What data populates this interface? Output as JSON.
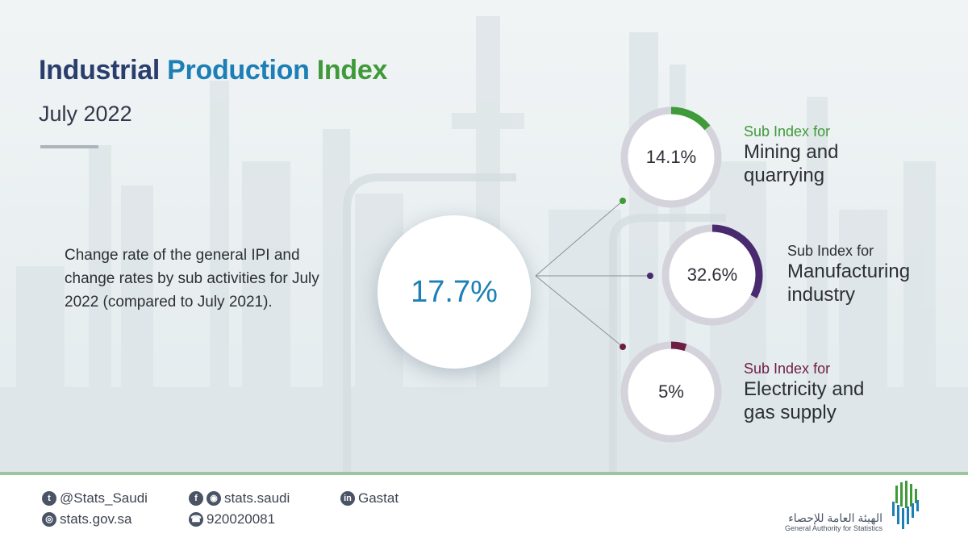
{
  "title": {
    "part1": "Industrial ",
    "part2": "Production ",
    "part3": "Index"
  },
  "date": "July 2022",
  "description": "Change rate of the general IPI and change rates by sub activities for July 2022 (compared to July 2021).",
  "general": {
    "value": "17.7%",
    "color": "#1c7fb5"
  },
  "sub_indices": [
    {
      "label": "Sub Index for",
      "name_line1": "Mining and",
      "name_line2": "quarrying",
      "value": "14.1%",
      "fraction": 0.141,
      "color": "#3f9a3a"
    },
    {
      "label": "Sub Index for",
      "name_line1": "Manufacturing",
      "name_line2": "industry",
      "value": "32.6%",
      "fraction": 0.326,
      "color": "#4a2a6e"
    },
    {
      "label": "Sub Index for",
      "name_line1": "Electricity and",
      "name_line2": "gas supply",
      "value": "5%",
      "fraction": 0.05,
      "color": "#6e1e45"
    }
  ],
  "footer": {
    "twitter": "@Stats_Saudi",
    "website": "stats.gov.sa",
    "social": "stats.saudi",
    "phone": "920020081",
    "linkedin": "Gastat",
    "org_arabic": "الهيئة العامة للإحصاء",
    "org_english": "General Authority for Statistics"
  },
  "icons": {
    "twitter": "twitter-icon",
    "web": "globe-icon",
    "facebook": "facebook-icon",
    "instagram": "instagram-icon",
    "phone": "phone-icon",
    "linkedin": "linkedin-icon"
  }
}
